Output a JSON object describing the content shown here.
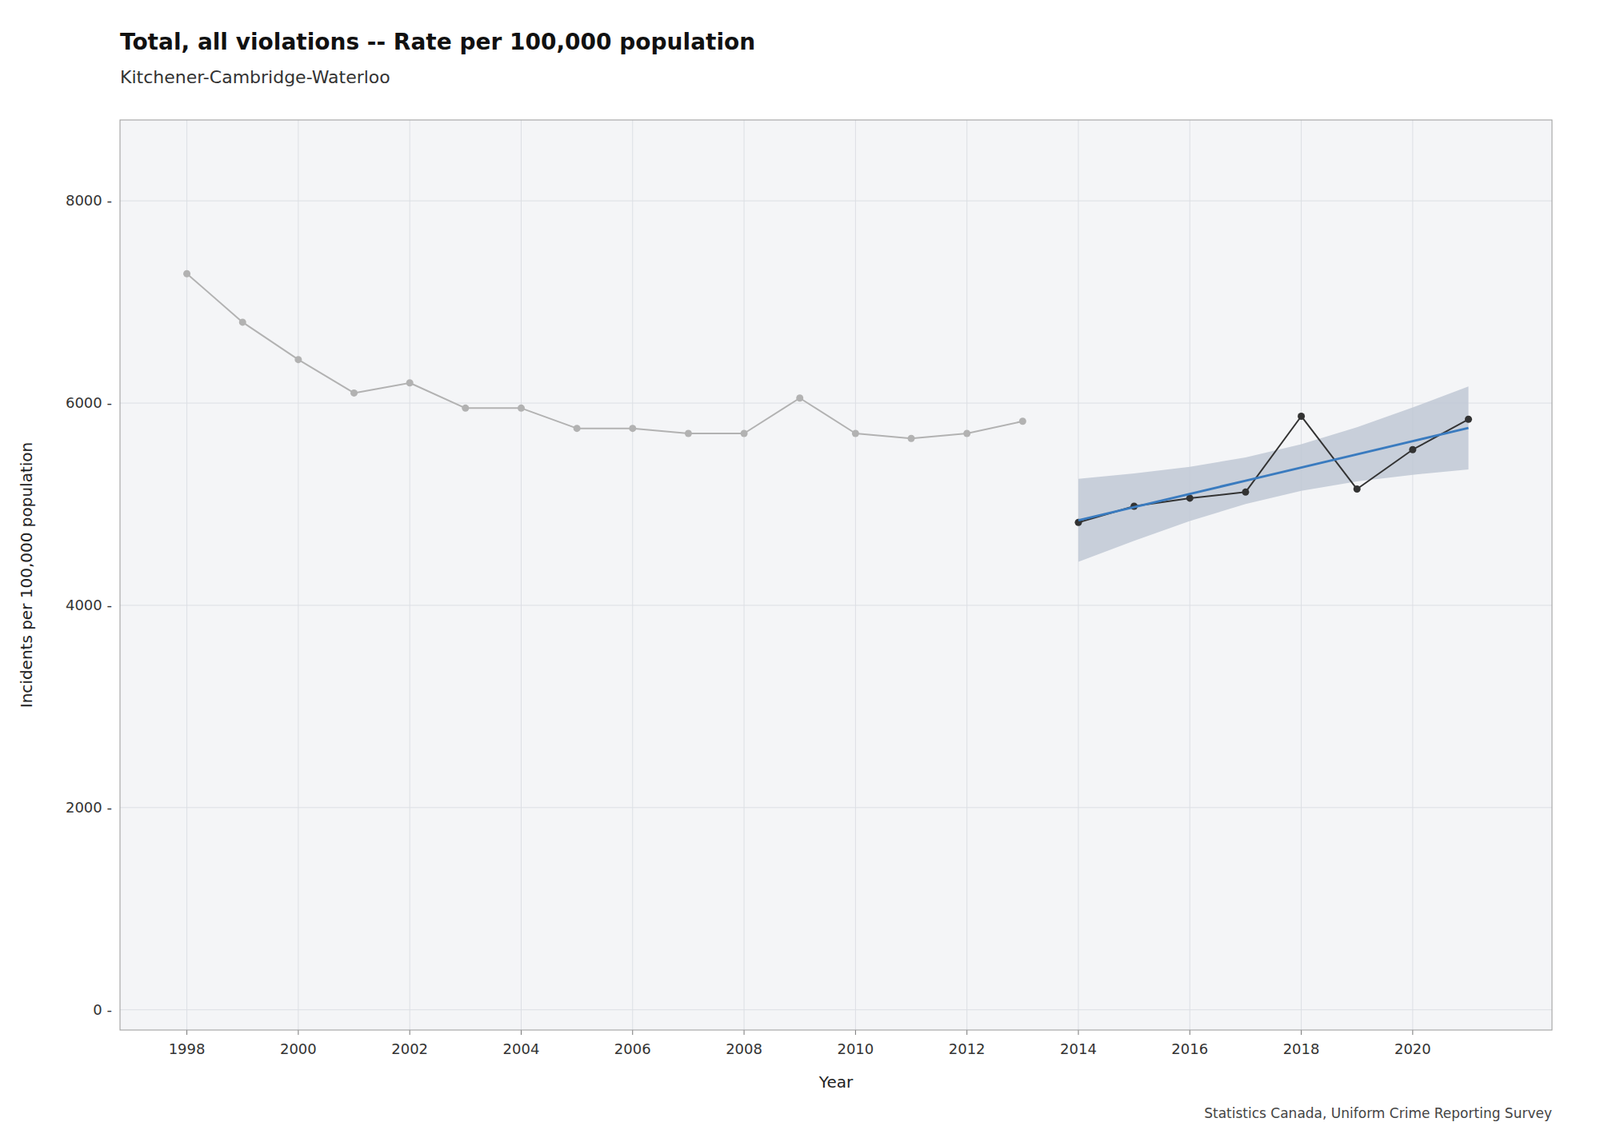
{
  "chart_data": {
    "type": "line",
    "title": "Total, all violations -- Rate per 100,000 population",
    "subtitle": "Kitchener-Cambridge-Waterloo",
    "caption": "Statistics Canada, Uniform Crime Reporting Survey",
    "x_label": "Year",
    "y_label": "Incidents per 100,000 population",
    "xlim": [
      1996.8,
      2022.5
    ],
    "ylim": [
      -200,
      8800
    ],
    "xticks": [
      1998,
      2000,
      2002,
      2004,
      2006,
      2008,
      2010,
      2012,
      2014,
      2016,
      2018,
      2020
    ],
    "yticks": [
      {
        "value": 0,
        "label": "0 -"
      },
      {
        "value": 2000,
        "label": "2000 -"
      },
      {
        "value": 4000,
        "label": "4000 -"
      },
      {
        "value": 6000,
        "label": "6000 -"
      },
      {
        "value": 8000,
        "label": "8000 -"
      }
    ],
    "grid": true,
    "series": [
      {
        "type": "band",
        "color": "#c0c8d5",
        "x": [
          2014,
          2015,
          2016,
          2017,
          2018,
          2019,
          2020,
          2021
        ],
        "lower": [
          4430.8,
          4638.9,
          4833.4,
          5002.4,
          5132.9,
          5224.8,
          5291.3,
          5344.1
        ],
        "upper": [
          5250.9,
          5303.7,
          5370.2,
          5462.1,
          5592.6,
          5761.6,
          5956.1,
          6164.2
        ]
      },
      {
        "type": "line",
        "color": "#b2b2b2",
        "marker": "circle",
        "x": [
          1998,
          1999,
          2000,
          2001,
          2002,
          2003,
          2004,
          2005,
          2006,
          2007,
          2008,
          2009,
          2010,
          2011,
          2012,
          2013
        ],
        "values": [
          7280,
          6800,
          6430,
          6100,
          6200,
          5950,
          5950,
          5750,
          5750,
          5700,
          5700,
          6050,
          5700,
          5650,
          5700,
          5820
        ]
      },
      {
        "type": "line",
        "color": "#333333",
        "marker": "circle",
        "x": [
          2014,
          2015,
          2016,
          2017,
          2018,
          2019,
          2020,
          2021
        ],
        "values": [
          4820,
          4980,
          5060,
          5120,
          5870,
          5150,
          5540,
          5840
        ]
      },
      {
        "type": "line",
        "color": "#3a7bbf",
        "x": [
          2014,
          2015,
          2016,
          2017,
          2018,
          2019,
          2020,
          2021
        ],
        "values": [
          4840.8,
          4971.3,
          5101.8,
          5232.3,
          5362.7,
          5493.2,
          5623.7,
          5754.2
        ]
      }
    ]
  }
}
